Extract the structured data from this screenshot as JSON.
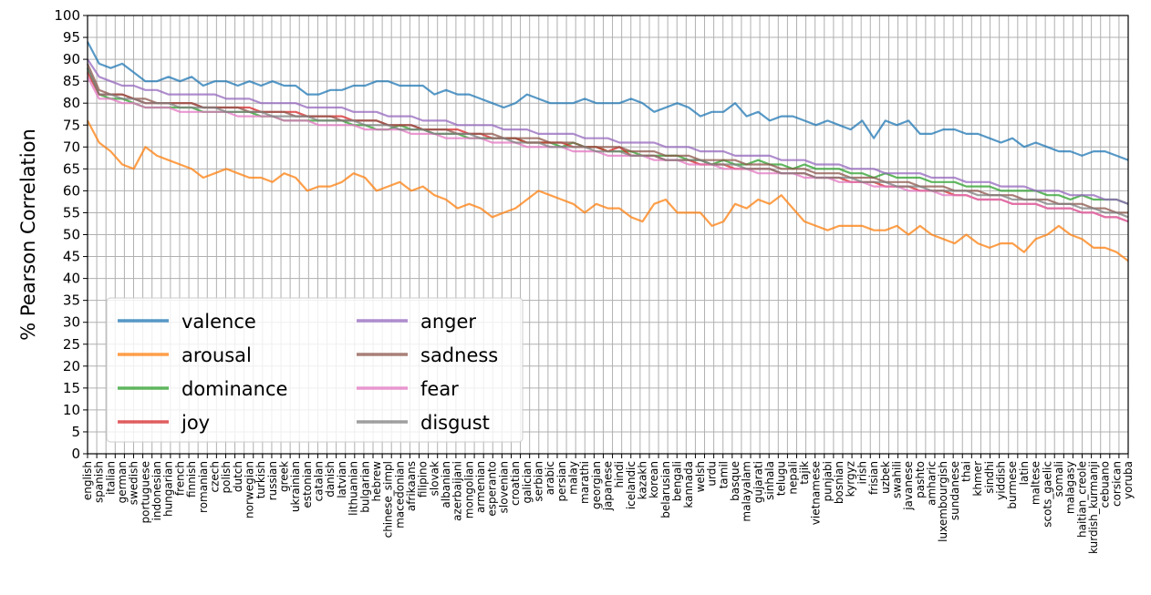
{
  "chart_data": {
    "type": "line",
    "title": "",
    "xlabel": "",
    "ylabel": "% Pearson Correlation",
    "ylim": [
      0,
      100
    ],
    "yticks": [
      0,
      5,
      10,
      15,
      20,
      25,
      30,
      35,
      40,
      45,
      50,
      55,
      60,
      65,
      70,
      75,
      80,
      85,
      90,
      95,
      100
    ],
    "grid": true,
    "legend_position": "lower-left",
    "legend_columns": 2,
    "categories": [
      "english",
      "spanish",
      "italian",
      "german",
      "swedish",
      "portuguese",
      "indonesian",
      "hungarian",
      "french",
      "finnish",
      "romanian",
      "czech",
      "polish",
      "dutch",
      "norwegian",
      "turkish",
      "russian",
      "greek",
      "ukrainian",
      "estonian",
      "catalan",
      "danish",
      "latvian",
      "lithuanian",
      "bulgarian",
      "hebrew",
      "chinese_simpl",
      "macedonian",
      "afrikaans",
      "filipino",
      "slovak",
      "albanian",
      "azerbaijani",
      "mongolian",
      "armenian",
      "esperanto",
      "slovenian",
      "croatian",
      "galician",
      "serbian",
      "arabic",
      "persian",
      "malay",
      "marathi",
      "georgian",
      "japanese",
      "hindi",
      "icelandic",
      "kazakh",
      "korean",
      "belarusian",
      "bengali",
      "kannada",
      "welsh",
      "urdu",
      "tamil",
      "basque",
      "malayalam",
      "gujarati",
      "sinhala",
      "telugu",
      "nepali",
      "tajik",
      "vietnamese",
      "punjabi",
      "bosnian",
      "kyrgyz",
      "irish",
      "frisian",
      "uzbek",
      "swahili",
      "javanese",
      "pashto",
      "amharic",
      "luxembourgish",
      "sundanese",
      "thai",
      "khmer",
      "sindhi",
      "yiddish",
      "burmese",
      "latin",
      "maltese",
      "scots_gaelic",
      "somali",
      "malagasy",
      "haitian_creole",
      "kurdish_kurmanji",
      "cebuano",
      "corsican",
      "yoruba"
    ],
    "category_positions": [
      0,
      1,
      2,
      3,
      4,
      5,
      6,
      7,
      8,
      9,
      10,
      11,
      12,
      13,
      14,
      15,
      16,
      17,
      18,
      19,
      20,
      21,
      22,
      23,
      24,
      25,
      26,
      27,
      28,
      29,
      30,
      31,
      32,
      33,
      34,
      35,
      36,
      37,
      38,
      39,
      40,
      41,
      42,
      43,
      44,
      45,
      46,
      47,
      48,
      49,
      50,
      51,
      52,
      53,
      54,
      55,
      56,
      57,
      58,
      59,
      60,
      61,
      62,
      63,
      64,
      65,
      66,
      67,
      68,
      69,
      70,
      71,
      72,
      73,
      74,
      75,
      76,
      77,
      78,
      79,
      80,
      81,
      82,
      83,
      84,
      85,
      86,
      87,
      88,
      89,
      90
    ],
    "x_max": 113,
    "series": [
      {
        "name": "valence",
        "color": "#1f77b4",
        "values": [
          94,
          89,
          88,
          89,
          87,
          85,
          85,
          86,
          85,
          86,
          84,
          85,
          85,
          84,
          85,
          84,
          85,
          84,
          84,
          82,
          82,
          83,
          83,
          84,
          84,
          85,
          85,
          84,
          84,
          84,
          82,
          83,
          82,
          82,
          81,
          80,
          79,
          80,
          82,
          81,
          80,
          80,
          80,
          81,
          80,
          80,
          80,
          81,
          80,
          78,
          79,
          80,
          79,
          77,
          78,
          78,
          80,
          77,
          78,
          76,
          77,
          77,
          76,
          75,
          76,
          75,
          74,
          76,
          72,
          76,
          75,
          76,
          73,
          73,
          74,
          74,
          73,
          73,
          72,
          71,
          72,
          70,
          71,
          70,
          69,
          69,
          68,
          69,
          69,
          68,
          67
        ]
      },
      {
        "name": "arousal",
        "color": "#ff7f0e",
        "values": [
          76,
          71,
          69,
          66,
          65,
          70,
          68,
          67,
          66,
          65,
          63,
          64,
          65,
          64,
          63,
          63,
          62,
          64,
          63,
          60,
          61,
          61,
          62,
          64,
          63,
          60,
          61,
          62,
          60,
          61,
          59,
          58,
          56,
          57,
          56,
          54,
          55,
          56,
          58,
          60,
          59,
          58,
          57,
          55,
          57,
          56,
          56,
          54,
          53,
          57,
          58,
          55,
          55,
          55,
          52,
          53,
          57,
          56,
          58,
          57,
          59,
          56,
          53,
          52,
          51,
          52,
          52,
          52,
          51,
          51,
          52,
          50,
          52,
          50,
          49,
          48,
          50,
          48,
          47,
          48,
          48,
          46,
          49,
          50,
          52,
          50,
          49,
          47,
          47,
          46,
          44
        ]
      },
      {
        "name": "dominance",
        "color": "#2ca02c",
        "values": [
          88,
          82,
          81,
          81,
          80,
          79,
          79,
          79,
          79,
          79,
          78,
          78,
          78,
          78,
          78,
          77,
          77,
          76,
          76,
          76,
          76,
          76,
          76,
          75,
          75,
          74,
          74,
          75,
          74,
          74,
          73,
          73,
          73,
          72,
          72,
          72,
          72,
          72,
          71,
          71,
          71,
          70,
          71,
          70,
          70,
          69,
          69,
          69,
          68,
          68,
          68,
          68,
          67,
          67,
          66,
          67,
          66,
          66,
          67,
          66,
          66,
          65,
          66,
          65,
          65,
          65,
          64,
          64,
          63,
          64,
          63,
          63,
          63,
          62,
          62,
          62,
          61,
          61,
          61,
          60,
          60,
          60,
          60,
          59,
          59,
          58,
          59,
          58,
          58,
          58,
          57
        ]
      },
      {
        "name": "joy",
        "color": "#d62728",
        "values": [
          87,
          82,
          82,
          82,
          81,
          80,
          80,
          80,
          80,
          80,
          79,
          79,
          79,
          79,
          79,
          78,
          78,
          78,
          78,
          77,
          77,
          77,
          77,
          76,
          76,
          76,
          75,
          75,
          75,
          74,
          74,
          74,
          74,
          73,
          73,
          72,
          72,
          72,
          71,
          71,
          71,
          71,
          70,
          70,
          70,
          69,
          70,
          68,
          68,
          68,
          67,
          67,
          67,
          66,
          66,
          66,
          65,
          65,
          65,
          65,
          64,
          64,
          64,
          63,
          63,
          63,
          62,
          62,
          62,
          61,
          61,
          61,
          60,
          60,
          60,
          59,
          59,
          58,
          58,
          58,
          57,
          57,
          57,
          56,
          56,
          56,
          55,
          55,
          54,
          54,
          53
        ]
      },
      {
        "name": "anger",
        "color": "#9467bd",
        "values": [
          90,
          86,
          85,
          84,
          84,
          83,
          83,
          82,
          82,
          82,
          82,
          82,
          81,
          81,
          81,
          80,
          80,
          80,
          80,
          79,
          79,
          79,
          79,
          78,
          78,
          78,
          77,
          77,
          77,
          76,
          76,
          76,
          75,
          75,
          75,
          75,
          74,
          74,
          74,
          73,
          73,
          73,
          73,
          72,
          72,
          72,
          71,
          71,
          71,
          71,
          70,
          70,
          70,
          69,
          69,
          69,
          68,
          68,
          68,
          68,
          67,
          67,
          67,
          66,
          66,
          66,
          65,
          65,
          65,
          64,
          64,
          64,
          64,
          63,
          63,
          63,
          62,
          62,
          62,
          61,
          61,
          61,
          60,
          60,
          60,
          59,
          59,
          59,
          58,
          58,
          57
        ]
      },
      {
        "name": "sadness",
        "color": "#8c564b",
        "values": [
          89,
          83,
          82,
          82,
          81,
          81,
          80,
          80,
          80,
          80,
          79,
          79,
          79,
          79,
          78,
          78,
          78,
          78,
          77,
          77,
          77,
          77,
          76,
          76,
          76,
          76,
          75,
          75,
          75,
          74,
          74,
          74,
          73,
          73,
          73,
          73,
          72,
          72,
          72,
          72,
          71,
          71,
          71,
          70,
          70,
          70,
          70,
          69,
          69,
          69,
          68,
          68,
          68,
          67,
          67,
          67,
          67,
          66,
          66,
          66,
          65,
          65,
          65,
          64,
          64,
          64,
          63,
          63,
          63,
          62,
          62,
          62,
          61,
          61,
          61,
          60,
          60,
          60,
          59,
          59,
          59,
          58,
          58,
          58,
          57,
          57,
          57,
          56,
          56,
          55,
          55
        ]
      },
      {
        "name": "fear",
        "color": "#e377c2",
        "values": [
          86,
          81,
          81,
          80,
          80,
          79,
          79,
          79,
          78,
          78,
          78,
          78,
          78,
          77,
          77,
          77,
          77,
          76,
          76,
          76,
          75,
          75,
          75,
          75,
          74,
          74,
          74,
          74,
          73,
          73,
          73,
          72,
          72,
          72,
          72,
          71,
          71,
          71,
          70,
          70,
          70,
          70,
          69,
          69,
          69,
          68,
          68,
          68,
          68,
          67,
          67,
          67,
          66,
          66,
          66,
          65,
          65,
          65,
          64,
          64,
          64,
          64,
          63,
          63,
          63,
          62,
          62,
          62,
          61,
          61,
          61,
          60,
          60,
          60,
          59,
          59,
          59,
          58,
          58,
          58,
          57,
          57,
          57,
          56,
          56,
          56,
          55,
          55,
          54,
          54,
          53
        ]
      },
      {
        "name": "disgust",
        "color": "#7f7f7f",
        "values": [
          88,
          82,
          82,
          81,
          81,
          80,
          80,
          80,
          79,
          79,
          79,
          79,
          78,
          78,
          78,
          78,
          77,
          77,
          77,
          77,
          76,
          76,
          76,
          76,
          75,
          75,
          75,
          74,
          74,
          74,
          73,
          73,
          73,
          73,
          72,
          72,
          72,
          71,
          71,
          71,
          70,
          70,
          70,
          70,
          69,
          69,
          69,
          68,
          68,
          68,
          67,
          67,
          67,
          67,
          66,
          66,
          66,
          65,
          65,
          65,
          64,
          64,
          64,
          63,
          63,
          63,
          63,
          62,
          62,
          62,
          61,
          61,
          61,
          60,
          60,
          60,
          60,
          59,
          59,
          59,
          58,
          58,
          58,
          57,
          57,
          57,
          56,
          56,
          55,
          55,
          54
        ]
      }
    ]
  }
}
